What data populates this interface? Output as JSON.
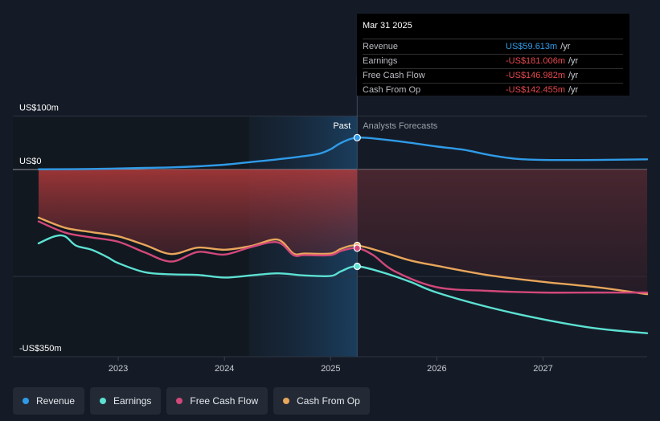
{
  "chart_data": {
    "type": "line",
    "y_unit_label": "US$",
    "ylim": [
      -350,
      100
    ],
    "y_tick_labels": [
      {
        "value": 100,
        "label": "US$100m"
      },
      {
        "value": 0,
        "label": "US$0"
      },
      {
        "value": -350,
        "label": "-US$350m"
      }
    ],
    "x_tick_labels": [
      {
        "value": 2023.0,
        "label": "2023"
      },
      {
        "value": 2024.0,
        "label": "2024"
      },
      {
        "value": 2025.0,
        "label": "2025"
      },
      {
        "value": 2026.0,
        "label": "2026"
      },
      {
        "value": 2027.0,
        "label": "2027"
      }
    ],
    "xlim": [
      2022.25,
      2027.98
    ],
    "past_marker": 2025.25,
    "past_label": "Past",
    "forecast_label": "Analysts Forecasts",
    "series": [
      {
        "name": "Revenue",
        "color": "#2f9be8",
        "points": [
          [
            2022.25,
            0.5
          ],
          [
            2022.75,
            1
          ],
          [
            2023.25,
            3
          ],
          [
            2023.5,
            4
          ],
          [
            2023.75,
            6
          ],
          [
            2024.0,
            9
          ],
          [
            2024.25,
            14
          ],
          [
            2024.5,
            19
          ],
          [
            2024.75,
            25
          ],
          [
            2024.9,
            30
          ],
          [
            2025.0,
            38
          ],
          [
            2025.1,
            50
          ],
          [
            2025.25,
            59.6
          ],
          [
            2025.5,
            56
          ],
          [
            2025.75,
            50
          ],
          [
            2026.0,
            43
          ],
          [
            2026.25,
            37
          ],
          [
            2026.5,
            27
          ],
          [
            2026.75,
            20
          ],
          [
            2027.0,
            18
          ],
          [
            2027.5,
            18
          ],
          [
            2027.98,
            19
          ]
        ]
      },
      {
        "name": "Earnings",
        "color": "#5ce1d2",
        "points": [
          [
            2022.25,
            -138
          ],
          [
            2022.4,
            -125
          ],
          [
            2022.5,
            -125
          ],
          [
            2022.6,
            -142
          ],
          [
            2022.75,
            -150
          ],
          [
            2022.9,
            -164
          ],
          [
            2023.0,
            -175
          ],
          [
            2023.25,
            -192
          ],
          [
            2023.5,
            -196
          ],
          [
            2023.75,
            -197
          ],
          [
            2024.0,
            -202
          ],
          [
            2024.25,
            -198
          ],
          [
            2024.5,
            -194
          ],
          [
            2024.75,
            -198
          ],
          [
            2025.0,
            -199
          ],
          [
            2025.1,
            -190
          ],
          [
            2025.25,
            -181
          ],
          [
            2025.5,
            -193
          ],
          [
            2025.75,
            -210
          ],
          [
            2026.0,
            -230
          ],
          [
            2026.5,
            -258
          ],
          [
            2027.0,
            -280
          ],
          [
            2027.5,
            -297
          ],
          [
            2027.98,
            -306
          ]
        ]
      },
      {
        "name": "Free Cash Flow",
        "color": "#d2487a",
        "points": [
          [
            2022.25,
            -97
          ],
          [
            2022.5,
            -118
          ],
          [
            2022.75,
            -127
          ],
          [
            2023.0,
            -135
          ],
          [
            2023.25,
            -155
          ],
          [
            2023.5,
            -172
          ],
          [
            2023.75,
            -154
          ],
          [
            2024.0,
            -159
          ],
          [
            2024.25,
            -145
          ],
          [
            2024.5,
            -136
          ],
          [
            2024.65,
            -160
          ],
          [
            2024.75,
            -160
          ],
          [
            2025.0,
            -160
          ],
          [
            2025.1,
            -152
          ],
          [
            2025.25,
            -147
          ],
          [
            2025.4,
            -160
          ],
          [
            2025.6,
            -190
          ],
          [
            2026.0,
            -220
          ],
          [
            2026.5,
            -227
          ],
          [
            2027.0,
            -230
          ],
          [
            2027.5,
            -230
          ],
          [
            2027.98,
            -230
          ]
        ]
      },
      {
        "name": "Cash From Op",
        "color": "#e8a65b",
        "points": [
          [
            2022.25,
            -90
          ],
          [
            2022.5,
            -109
          ],
          [
            2022.75,
            -117
          ],
          [
            2023.0,
            -125
          ],
          [
            2023.25,
            -141
          ],
          [
            2023.5,
            -158
          ],
          [
            2023.75,
            -146
          ],
          [
            2024.0,
            -150
          ],
          [
            2024.25,
            -143
          ],
          [
            2024.5,
            -131
          ],
          [
            2024.65,
            -157
          ],
          [
            2024.75,
            -157
          ],
          [
            2025.0,
            -157
          ],
          [
            2025.1,
            -148
          ],
          [
            2025.25,
            -142
          ],
          [
            2025.5,
            -155
          ],
          [
            2025.75,
            -170
          ],
          [
            2026.0,
            -180
          ],
          [
            2026.5,
            -198
          ],
          [
            2027.0,
            -210
          ],
          [
            2027.5,
            -220
          ],
          [
            2027.98,
            -233
          ]
        ]
      }
    ]
  },
  "tooltip": {
    "date": "Mar 31 2025",
    "rows": [
      {
        "label": "Revenue",
        "value": "US$59.613m",
        "unit": "/yr",
        "color": "#2f9be8"
      },
      {
        "label": "Earnings",
        "value": "-US$181.006m",
        "unit": "/yr",
        "color": "#e5484d"
      },
      {
        "label": "Free Cash Flow",
        "value": "-US$146.982m",
        "unit": "/yr",
        "color": "#e5484d"
      },
      {
        "label": "Cash From Op",
        "value": "-US$142.455m",
        "unit": "/yr",
        "color": "#e5484d"
      }
    ]
  },
  "legend": [
    {
      "label": "Revenue",
      "color": "#2f9be8"
    },
    {
      "label": "Earnings",
      "color": "#5ce1d2"
    },
    {
      "label": "Free Cash Flow",
      "color": "#d2487a"
    },
    {
      "label": "Cash From Op",
      "color": "#e8a65b"
    }
  ]
}
